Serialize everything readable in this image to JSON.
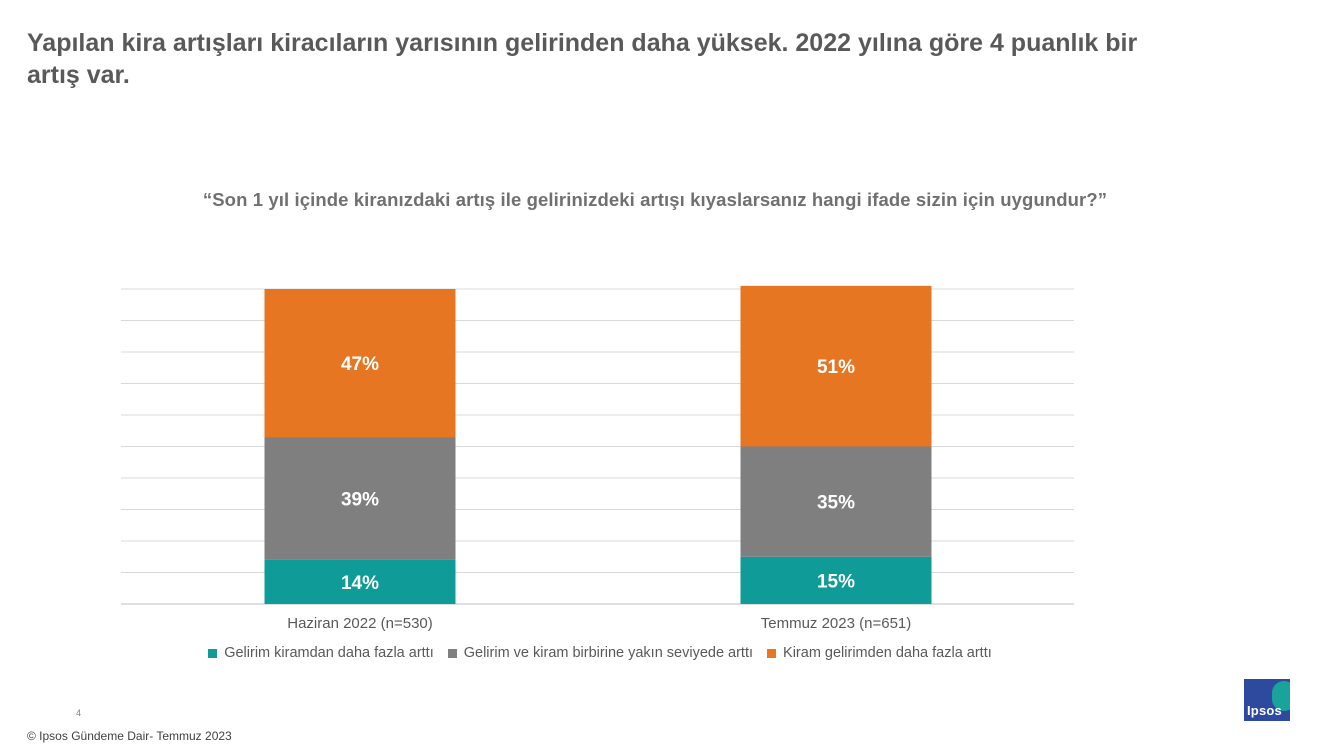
{
  "headline": "Yapılan kira artışları kiracıların yarısının gelirinden daha yüksek. 2022 yılına göre 4 puanlık bir artış var.",
  "question": "“Son 1 yıl içinde kiranızdaki artış ile gelirinizdeki artışı kıyaslarsanız hangi ifade sizin için uygundur?”",
  "chart_data": {
    "type": "bar",
    "stacked": true,
    "categories": [
      "Haziran 2022 (n=530)",
      "Temmuz 2023 (n=651)"
    ],
    "series": [
      {
        "name": "Gelirim kiramdan daha fazla arttı",
        "values": [
          14,
          15
        ],
        "labels": [
          "14%",
          "15%"
        ],
        "color": "#0f9b98"
      },
      {
        "name": "Gelirim ve kiram birbirine yakın seviyede arttı",
        "values": [
          39,
          35
        ],
        "labels": [
          "39%",
          "35%"
        ],
        "color": "#7f7f7f"
      },
      {
        "name": "Kiram gelirimden daha fazla arttı",
        "values": [
          47,
          51
        ],
        "labels": [
          "47%",
          "51%"
        ],
        "color": "#e67622"
      }
    ],
    "ylim": [
      0,
      100
    ],
    "grid": true,
    "legend_position": "bottom"
  },
  "page_number": "4",
  "footer": {
    "copyright": "© Ipsos",
    "text": " Gündeme Dair- Temmuz 2023"
  },
  "logo": {
    "text": "Ipsos"
  }
}
